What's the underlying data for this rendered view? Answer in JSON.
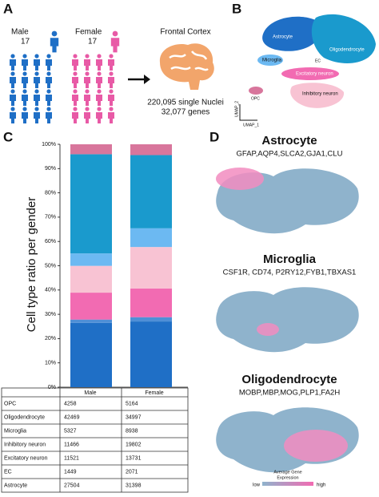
{
  "panels": {
    "a": "A",
    "b": "B",
    "c": "C",
    "d": "D"
  },
  "panel_a": {
    "male_label": "Male",
    "male_count": "17",
    "female_label": "Female",
    "female_count": "17",
    "region": "Frontal Cortex",
    "nuclei": "220,095 single Nuclei",
    "genes": "32,077 genes"
  },
  "panel_b": {
    "clusters": [
      "Astrocyte",
      "Oligodendrocyte",
      "Microglia",
      "EC",
      "Excitatory neuron",
      "Inhibitory neuron",
      "OPC"
    ],
    "x_label": "UMAP_1",
    "y_label": "UMAP_2"
  },
  "chart_data": {
    "type": "bar",
    "stacked": true,
    "y_label": "Cell type ratio per gender",
    "categories": [
      "Male",
      "Female"
    ],
    "ylim": [
      0,
      100
    ],
    "yticks": [
      {
        "value": 0,
        "label": "0%"
      },
      {
        "value": 10,
        "label": "10%"
      },
      {
        "value": 20,
        "label": "20%"
      },
      {
        "value": 30,
        "label": "30%"
      },
      {
        "value": 40,
        "label": "40%"
      },
      {
        "value": 50,
        "label": "50%"
      },
      {
        "value": 60,
        "label": "60%"
      },
      {
        "value": 70,
        "label": "70%"
      },
      {
        "value": 80,
        "label": "80%"
      },
      {
        "value": 90,
        "label": "90%"
      },
      {
        "value": 100,
        "label": "100%"
      }
    ],
    "series": [
      {
        "color": "#1f6fc6",
        "values": [
          26.45,
          27.04
        ]
      },
      {
        "color": "#4f8fd6",
        "values": [
          1.39,
          1.78
        ]
      },
      {
        "color": "#f26bb2",
        "values": [
          11.08,
          11.83
        ]
      },
      {
        "color": "#f8c3d3",
        "values": [
          11.03,
          17.06
        ]
      },
      {
        "color": "#6cb9f2",
        "values": [
          5.12,
          7.7
        ]
      },
      {
        "color": "#1a9acd",
        "values": [
          40.84,
          30.14
        ]
      },
      {
        "color": "#d8769c",
        "values": [
          4.09,
          4.45
        ]
      }
    ]
  },
  "table": {
    "rows": [
      [
        "OPC",
        4258,
        5164
      ],
      [
        "Oligodendrocyte",
        42469,
        34997
      ],
      [
        "Microglia",
        5327,
        8938
      ],
      [
        "Inhibitory neuron",
        11466,
        19802
      ],
      [
        "Excitatory neuron",
        11521,
        13731
      ],
      [
        "EC",
        1449,
        2071
      ],
      [
        "Astrocyte",
        27504,
        31398
      ]
    ]
  },
  "panel_d": {
    "markers": [
      {
        "title": "Astrocyte",
        "genes": "GFAP,AQP4,SLCA2,GJA1,CLU"
      },
      {
        "title": "Microglia",
        "genes": "CSF1R, CD74, P2RY12,FYB1,TBXAS1"
      },
      {
        "title": "Oligodendrocyte",
        "genes": "MOBP,MBP,MOG,PLP1,FA2H"
      }
    ],
    "legend": {
      "title_lines": [
        "Average Gene",
        "Expression"
      ],
      "low": "low",
      "high": "high"
    }
  }
}
